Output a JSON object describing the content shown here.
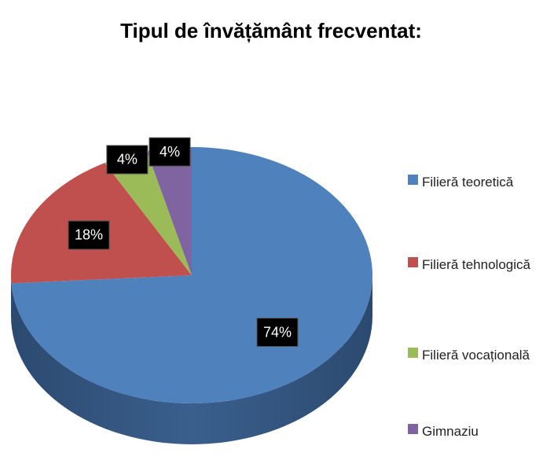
{
  "chart_data": {
    "type": "pie",
    "title": "Tipul de învățământ frecventat:",
    "categories": [
      "Filieră teoretică",
      "Filieră tehnologică",
      "Filieră vocațională",
      "Gimnaziu"
    ],
    "values": [
      74,
      18,
      4,
      4
    ],
    "value_labels": [
      "74%",
      "18%",
      "4%",
      "4%"
    ],
    "colors": [
      "#4f81bd",
      "#c0504d",
      "#9bbb59",
      "#8064a2"
    ],
    "legend": "right"
  }
}
